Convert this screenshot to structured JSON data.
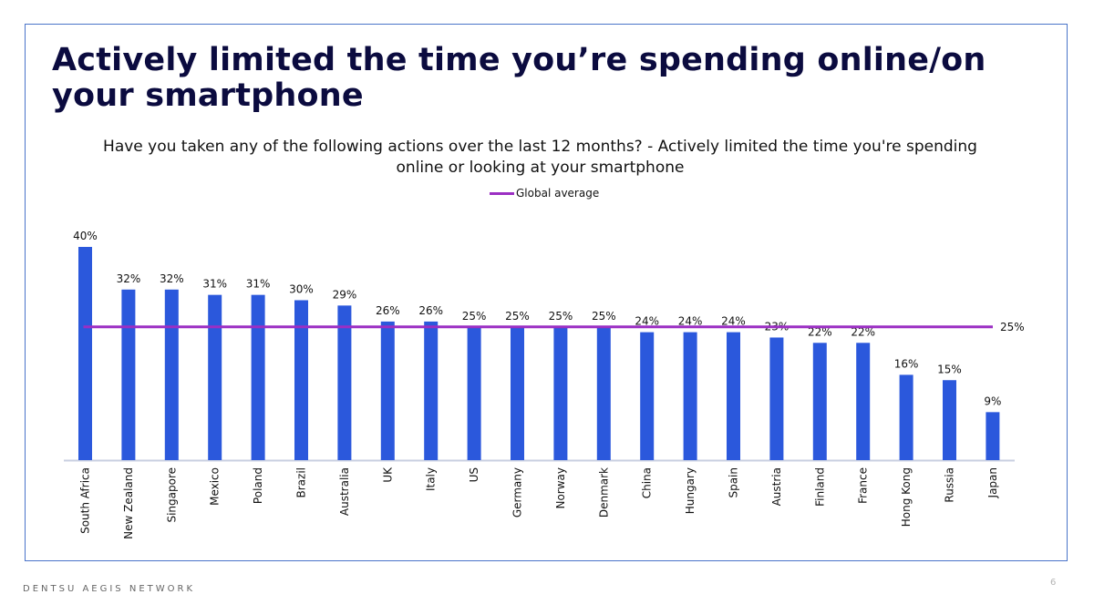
{
  "slide": {
    "title": "Actively limited the time you’re spending online/on your smartphone",
    "footer_brand": "DENTSU AEGIS NETWORK",
    "page_number": "6"
  },
  "chart_data": {
    "type": "bar",
    "title": "Have you taken any of the following actions over the last 12 months? - Actively limited the time you're spending online or looking at your smartphone",
    "categories": [
      "South Africa",
      "New Zealand",
      "Singapore",
      "Mexico",
      "Poland",
      "Brazil",
      "Australia",
      "UK",
      "Italy",
      "US",
      "Germany",
      "Norway",
      "Denmark",
      "China",
      "Hungary",
      "Spain",
      "Austria",
      "Finland",
      "France",
      "Hong Kong",
      "Russia",
      "Japan"
    ],
    "series": [
      {
        "values": [
          40,
          32,
          32,
          31,
          31,
          30,
          29,
          26,
          26,
          25,
          25,
          25,
          25,
          24,
          24,
          24,
          23,
          22,
          22,
          16,
          15,
          9
        ],
        "labels": [
          "40%",
          "32%",
          "32%",
          "31%",
          "31%",
          "30%",
          "29%",
          "26%",
          "26%",
          "25%",
          "25%",
          "25%",
          "25%",
          "24%",
          "24%",
          "24%",
          "23%",
          "22%",
          "22%",
          "16%",
          "15%",
          "9%"
        ],
        "color": "#2b58dc"
      }
    ],
    "reference_line": {
      "name": "Global average",
      "value": 25,
      "label": "25%",
      "color": "#9b2fc3"
    },
    "ylim": [
      0,
      40
    ],
    "grid": false,
    "legend_position": "top-center",
    "axis_color": "#c9cfe0"
  }
}
